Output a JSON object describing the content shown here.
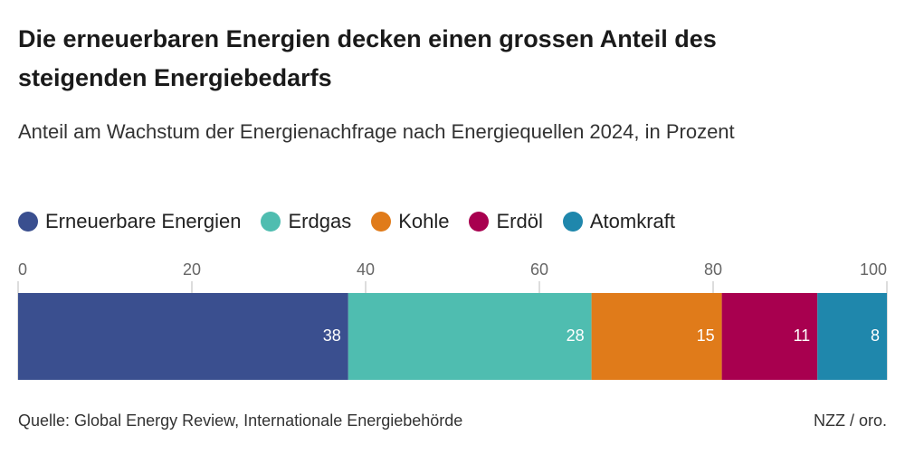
{
  "chart_data": {
    "type": "stacked-bar-horizontal",
    "title": "Die erneuerbaren Energien decken einen grossen Anteil des steigenden Energiebedarfs",
    "subtitle": "Anteil am Wachstum der Energienachfrage nach Energiequellen 2024, in Prozent",
    "series": [
      {
        "name": "Erneuerbare Energien",
        "color": "#3a4f8f",
        "values": [
          38
        ]
      },
      {
        "name": "Erdgas",
        "color": "#4fbdb0",
        "values": [
          28
        ]
      },
      {
        "name": "Kohle",
        "color": "#e07b1a",
        "values": [
          15
        ]
      },
      {
        "name": "Erdöl",
        "color": "#a8004f",
        "values": [
          11
        ]
      },
      {
        "name": "Atomkraft",
        "color": "#1f87ac",
        "values": [
          8
        ]
      }
    ],
    "xlim": [
      0,
      100
    ],
    "xticks": [
      0,
      20,
      40,
      60,
      80,
      100
    ],
    "source": "Quelle: Global Energy Review, Internationale Energiebehörde",
    "credit": "NZZ / oro."
  }
}
